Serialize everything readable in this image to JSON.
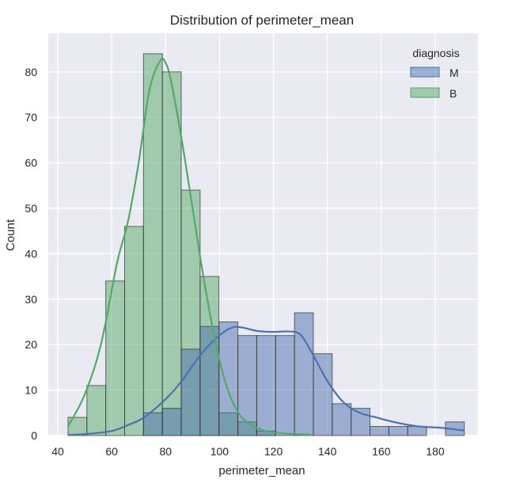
{
  "chart_data": {
    "type": "histogram",
    "title": "Distribution of perimeter_mean",
    "xlabel": "perimeter_mean",
    "ylabel": "Count",
    "xlim": [
      40,
      196
    ],
    "ylim": [
      0,
      87
    ],
    "xticks": [
      40,
      60,
      80,
      100,
      120,
      140,
      160,
      180
    ],
    "yticks": [
      0,
      10,
      20,
      30,
      40,
      50,
      60,
      70,
      80
    ],
    "grid": true,
    "legend": {
      "title": "diagnosis",
      "placement": "top-right"
    },
    "bin_edges": [
      43.8,
      50.8,
      57.8,
      64.8,
      71.8,
      78.8,
      85.8,
      92.8,
      99.8,
      106.8,
      113.8,
      120.8,
      127.8,
      134.8,
      141.8,
      148.8,
      155.8,
      162.8,
      169.8,
      176.8,
      183.8,
      190.8
    ],
    "series": [
      {
        "name": "M",
        "color": "#4c72b0",
        "counts": [
          0,
          0,
          0,
          0,
          5,
          6,
          19,
          24,
          25,
          22,
          22,
          22,
          27,
          18,
          7,
          6,
          2,
          2,
          2,
          0,
          3
        ],
        "kde": [
          [
            43.8,
            0.1
          ],
          [
            50,
            0.3
          ],
          [
            60,
            1
          ],
          [
            66,
            2.3
          ],
          [
            72,
            4
          ],
          [
            80,
            8
          ],
          [
            86,
            12
          ],
          [
            92,
            17
          ],
          [
            98,
            21
          ],
          [
            104,
            23.6
          ],
          [
            108,
            23.8
          ],
          [
            114,
            23
          ],
          [
            120,
            22.8
          ],
          [
            126,
            22.9
          ],
          [
            130,
            22.2
          ],
          [
            134,
            18.5
          ],
          [
            140,
            12
          ],
          [
            146,
            7.3
          ],
          [
            152,
            5
          ],
          [
            158,
            4
          ],
          [
            166,
            2.8
          ],
          [
            174,
            2
          ],
          [
            182,
            1.7
          ],
          [
            190.8,
            1.1
          ]
        ]
      },
      {
        "name": "B",
        "color": "#55a868",
        "counts": [
          4,
          11,
          34,
          46,
          84,
          80,
          54,
          35,
          5,
          3,
          1,
          0,
          0,
          0,
          0,
          0,
          0,
          0,
          0,
          0,
          0
        ],
        "kde": [
          [
            43.8,
            2
          ],
          [
            50,
            9
          ],
          [
            56,
            20
          ],
          [
            62,
            38
          ],
          [
            66,
            47
          ],
          [
            70,
            60
          ],
          [
            74,
            76
          ],
          [
            78,
            82.5
          ],
          [
            80,
            82
          ],
          [
            82,
            78
          ],
          [
            86,
            65
          ],
          [
            90,
            50
          ],
          [
            94,
            35
          ],
          [
            98,
            22
          ],
          [
            102,
            12
          ],
          [
            106,
            6
          ],
          [
            110,
            3
          ],
          [
            116,
            1.2
          ],
          [
            122,
            0.6
          ],
          [
            128,
            0.3
          ],
          [
            134,
            0.2
          ]
        ]
      }
    ]
  }
}
